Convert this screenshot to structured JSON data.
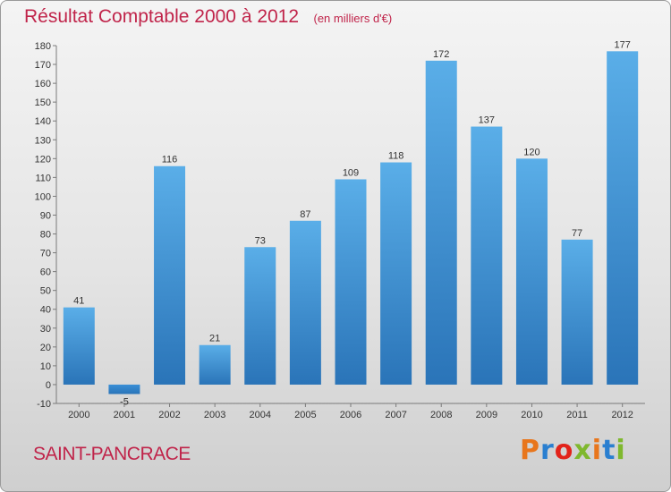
{
  "chart_data": {
    "type": "bar",
    "title": "Résultat Comptable 2000 à 2012",
    "subtitle": "(en milliers d'€)",
    "categories": [
      "2000",
      "2001",
      "2002",
      "2003",
      "2004",
      "2005",
      "2006",
      "2007",
      "2008",
      "2009",
      "2010",
      "2011",
      "2012"
    ],
    "values": [
      41,
      -5,
      116,
      21,
      73,
      87,
      109,
      118,
      172,
      137,
      120,
      77,
      177
    ],
    "ylim": [
      -10,
      180
    ],
    "yticks": [
      -10,
      0,
      10,
      20,
      30,
      40,
      50,
      60,
      70,
      80,
      90,
      100,
      110,
      120,
      130,
      140,
      150,
      160,
      170,
      180
    ],
    "grid": false,
    "bar_color": "#3a8fd6",
    "title_color": "#c0244a"
  },
  "footer": {
    "place": "SAINT-PANCRACE",
    "logo": "Proxiti",
    "logo_colors": [
      "#e8761c",
      "#2a7fd0",
      "#e2231a",
      "#7fb82e",
      "#e8761c",
      "#2a7fd0",
      "#7fb82e"
    ]
  }
}
